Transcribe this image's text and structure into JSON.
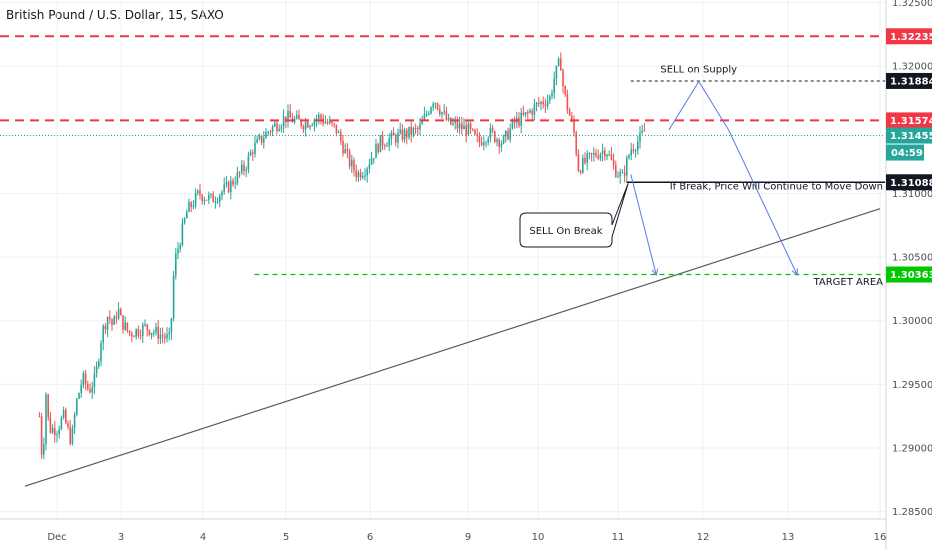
{
  "title": "British Pound / U.S. Dollar, 15, SAXO",
  "chart_data": {
    "type": "candlestick",
    "symbol": "British Pound / U.S. Dollar",
    "interval": "15",
    "source": "SAXO",
    "ylim": [
      1.2845,
      1.3252
    ],
    "y_ticks": [
      "1.32500",
      "1.32000",
      "1.31000",
      "1.30500",
      "1.30000",
      "1.29500",
      "1.29000",
      "1.28500"
    ],
    "x_ticks": [
      {
        "label": "Dec",
        "day": 1
      },
      {
        "label": "3",
        "day": 3
      },
      {
        "label": "4",
        "day": 4
      },
      {
        "label": "5",
        "day": 5
      },
      {
        "label": "6",
        "day": 6
      },
      {
        "label": "9",
        "day": 7
      },
      {
        "label": "10",
        "day": 8
      },
      {
        "label": "11",
        "day": 9
      },
      {
        "label": "12",
        "day": 10
      },
      {
        "label": "13",
        "day": 11
      },
      {
        "label": "16",
        "day": 12
      }
    ],
    "price_path": [
      [
        0.45,
        1.2925
      ],
      [
        0.55,
        1.2885
      ],
      [
        0.65,
        1.2945
      ],
      [
        0.75,
        1.2915
      ],
      [
        0.9,
        1.2915
      ],
      [
        1.0,
        1.2915
      ],
      [
        1.2,
        1.2925
      ],
      [
        1.45,
        1.2905
      ],
      [
        1.6,
        1.2935
      ],
      [
        1.8,
        1.2955
      ],
      [
        2.0,
        1.2945
      ],
      [
        2.2,
        1.2955
      ],
      [
        2.4,
        1.299
      ],
      [
        2.6,
        1.3005
      ],
      [
        2.75,
        1.2995
      ],
      [
        2.9,
        1.301
      ],
      [
        3.1,
        1.299
      ],
      [
        3.3,
        1.2995
      ],
      [
        3.45,
        1.299
      ],
      [
        3.6,
        1.2985
      ],
      [
        3.65,
        1.3045
      ],
      [
        3.8,
        1.3085
      ],
      [
        3.95,
        1.31
      ],
      [
        4.1,
        1.3095
      ],
      [
        4.3,
        1.3105
      ],
      [
        4.5,
        1.312
      ],
      [
        4.6,
        1.3135
      ],
      [
        4.8,
        1.315
      ],
      [
        5.0,
        1.316
      ],
      [
        5.2,
        1.3155
      ],
      [
        5.4,
        1.316
      ],
      [
        5.6,
        1.315
      ],
      [
        5.75,
        1.3125
      ],
      [
        5.85,
        1.3115
      ],
      [
        5.95,
        1.312
      ],
      [
        6.1,
        1.314
      ],
      [
        6.3,
        1.3145
      ],
      [
        6.5,
        1.315
      ],
      [
        6.65,
        1.3175
      ],
      [
        6.8,
        1.3155
      ],
      [
        7.0,
        1.315
      ],
      [
        7.15,
        1.314
      ],
      [
        7.3,
        1.3148
      ],
      [
        7.5,
        1.314
      ],
      [
        7.65,
        1.3155
      ],
      [
        7.8,
        1.316
      ],
      [
        8.0,
        1.317
      ],
      [
        8.15,
        1.3175
      ],
      [
        8.2,
        1.319
      ],
      [
        8.28,
        1.3205
      ],
      [
        8.32,
        1.318
      ],
      [
        8.4,
        1.316
      ],
      [
        8.46,
        1.3145
      ],
      [
        8.5,
        1.312
      ],
      [
        8.6,
        1.3125
      ],
      [
        8.7,
        1.313
      ],
      [
        8.85,
        1.3135
      ],
      [
        8.95,
        1.312
      ],
      [
        9.05,
        1.3112
      ],
      [
        9.15,
        1.3135
      ],
      [
        9.25,
        1.3142
      ],
      [
        9.32,
        1.315
      ]
    ],
    "horizontal_levels": [
      {
        "price": 1.32235,
        "label": "1.32235",
        "color": "#f23645",
        "style": "dashed"
      },
      {
        "price": 1.31574,
        "label": "1.31574",
        "color": "#f23645",
        "style": "dashed"
      },
      {
        "price": 1.31884,
        "label": "1.31884",
        "color": "#131722",
        "style": "dotted"
      },
      {
        "price": 1.31455,
        "label": "1.31455",
        "color": "#26a69a",
        "style": "dotted-current"
      },
      {
        "price": 1.31088,
        "label": "1.31088",
        "color": "#131722",
        "style": "solid"
      },
      {
        "price": 1.30363,
        "label": "1.30363",
        "color": "#00c800",
        "style": "dashed"
      }
    ],
    "countdown": "04:59",
    "trendline": [
      [
        0.0,
        1.287
      ],
      [
        12.0,
        1.3088
      ]
    ],
    "projection_path_1": [
      [
        9.15,
        1.3115
      ],
      [
        9.45,
        1.3036
      ]
    ],
    "projection_path_2": [
      [
        9.6,
        1.315
      ],
      [
        9.95,
        1.3188
      ],
      [
        10.3,
        1.315
      ],
      [
        11.1,
        1.3036
      ]
    ],
    "annotations": [
      {
        "text": "SELL on Supply",
        "day": 9.95,
        "price": 1.3195
      },
      {
        "text": "If Break, Price Will Continue to Move Down",
        "day": 9.55,
        "price": 1.3103
      },
      {
        "text": "SELL On Break",
        "day": 7.4,
        "price": 1.3073
      },
      {
        "text": "TARGET AREA",
        "day": 11.35,
        "price": 1.3028
      }
    ]
  },
  "colors": {
    "up": "#26a69a",
    "down": "#ef5350",
    "grid": "#eef0f3",
    "axis_text": "#4a4f5a",
    "resistance": "#f23645",
    "target": "#00c800",
    "projection": "#5b7be8"
  }
}
